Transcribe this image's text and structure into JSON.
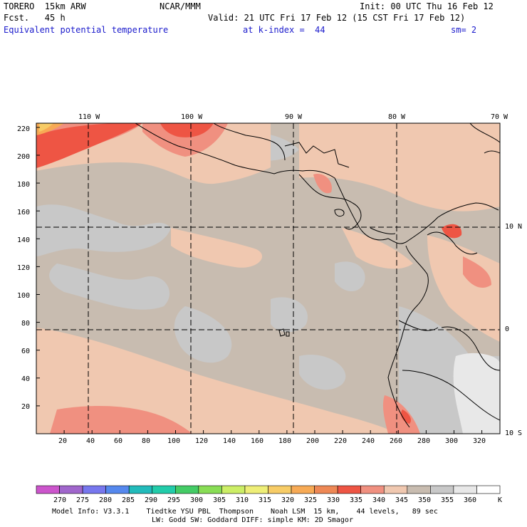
{
  "header": {
    "run_title": "TORERO  15km ARW",
    "center": "NCAR/MMM",
    "init": "Init: 00 UTC Thu 16 Feb 12",
    "fcst": "Fcst.   45 h",
    "valid": "Valid: 21 UTC Fri 17 Feb 12 (15 CST Fri 17 Feb 12)",
    "field": "Equivalent potential temperature",
    "level": "at k-index =  44",
    "smoothing": "sm= 2",
    "field_color": "#1a1acc"
  },
  "map": {
    "top_lon_labels": [
      "110 W",
      "100 W",
      "90 W",
      "80 W",
      "70 W"
    ],
    "right_lat_labels": [
      "10 N",
      "0",
      "10 S"
    ],
    "y_ticks": [
      "220",
      "200",
      "180",
      "160",
      "140",
      "120",
      "100",
      "80",
      "60",
      "40",
      "20"
    ],
    "x_ticks": [
      "20",
      "40",
      "60",
      "80",
      "100",
      "120",
      "140",
      "160",
      "180",
      "200",
      "220",
      "240",
      "260",
      "280",
      "300",
      "320"
    ],
    "y_tick_values": [
      220,
      200,
      180,
      160,
      140,
      120,
      100,
      80,
      60,
      40,
      20
    ],
    "x_tick_values": [
      20,
      40,
      60,
      80,
      100,
      120,
      140,
      160,
      180,
      200,
      220,
      240,
      260,
      280,
      300,
      320
    ],
    "grid_lon_lines_x": [
      39,
      114,
      188,
      262
    ],
    "grid_lat_lines_y": [
      150,
      77
    ],
    "grid_range": {
      "x": [
        0,
        333
      ],
      "y": [
        0,
        223
      ]
    }
  },
  "colorbar": {
    "labels": [
      "270",
      "275",
      "280",
      "285",
      "290",
      "295",
      "300",
      "305",
      "310",
      "315",
      "320",
      "325",
      "330",
      "335",
      "340",
      "345",
      "350",
      "355",
      "360"
    ],
    "unit": "K",
    "colors": [
      "#cc55cc",
      "#a066cc",
      "#7777ee",
      "#5588ee",
      "#22bbbb",
      "#22ccaa",
      "#44cc66",
      "#88dd55",
      "#ccee66",
      "#eeee77",
      "#f7cc66",
      "#f7aa55",
      "#ee8855",
      "#ee5544",
      "#f09080",
      "#f0c8b0",
      "#c8bcb0",
      "#c8c8c8",
      "#e8e8e8",
      "#ffffff"
    ]
  },
  "footer": {
    "line1": "Model Info: V3.3.1    Tiedtke YSU PBL  Thompson    Noah LSM  15 km,    44 levels,   89 sec",
    "line2": "LW: Godd SW: Goddard DIFF: simple KM: 2D Smagor"
  }
}
